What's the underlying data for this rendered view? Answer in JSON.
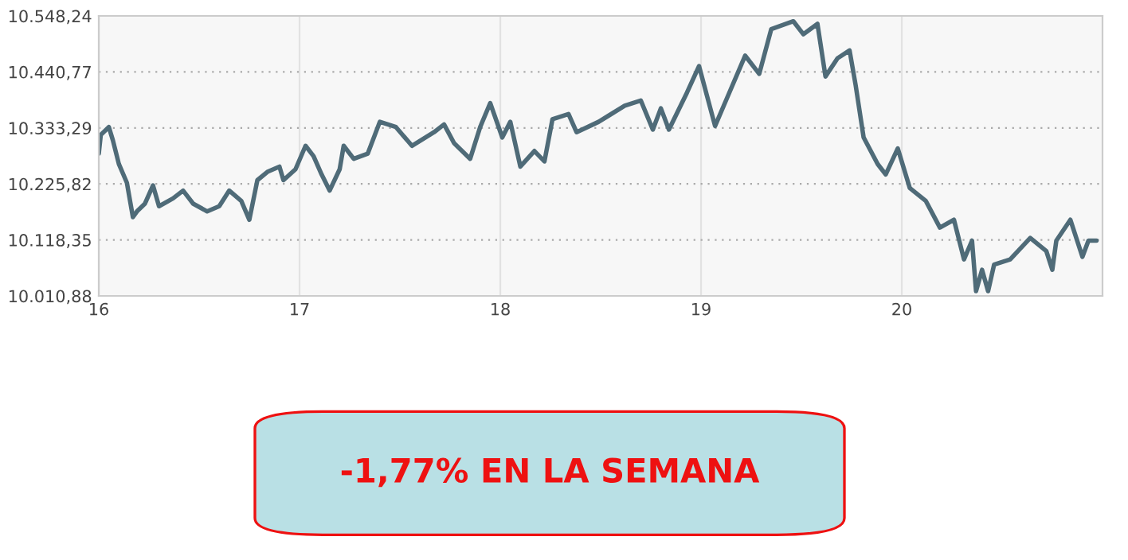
{
  "chart_data": {
    "type": "line",
    "x": [
      16.0,
      16.01,
      16.05,
      16.07,
      16.1,
      16.14,
      16.17,
      16.19,
      16.23,
      16.27,
      16.3,
      16.37,
      16.42,
      16.47,
      16.54,
      16.6,
      16.65,
      16.71,
      16.75,
      16.79,
      16.84,
      16.9,
      16.92,
      16.98,
      17.03,
      17.07,
      17.11,
      17.15,
      17.2,
      17.22,
      17.27,
      17.34,
      17.4,
      17.48,
      17.56,
      17.67,
      17.72,
      17.77,
      17.85,
      17.9,
      17.95,
      18.01,
      18.05,
      18.1,
      18.17,
      18.22,
      18.26,
      18.34,
      18.38,
      18.49,
      18.62,
      18.7,
      18.76,
      18.8,
      18.84,
      18.93,
      18.99,
      19.07,
      19.13,
      19.22,
      19.29,
      19.35,
      19.46,
      19.51,
      19.58,
      19.62,
      19.68,
      19.74,
      19.77,
      19.81,
      19.88,
      19.92,
      19.98,
      20.04,
      20.12,
      20.19,
      20.26,
      20.31,
      20.35,
      20.37,
      20.4,
      20.43,
      20.46,
      20.54,
      20.64,
      20.72,
      20.75,
      20.77,
      20.84,
      20.9,
      20.93,
      20.97
    ],
    "series": [
      {
        "color": "#4f6b78",
        "values": [
          10284,
          10320,
          10335,
          10310,
          10264,
          10228,
          10162,
          10173,
          10188,
          10223,
          10183,
          10198,
          10213,
          10188,
          10173,
          10183,
          10213,
          10193,
          10157,
          10233,
          10249,
          10259,
          10233,
          10254,
          10299,
          10279,
          10244,
          10213,
          10254,
          10299,
          10274,
          10284,
          10345,
          10335,
          10299,
          10325,
          10340,
          10304,
          10274,
          10335,
          10381,
          10315,
          10345,
          10259,
          10289,
          10269,
          10350,
          10360,
          10325,
          10345,
          10376,
          10386,
          10330,
          10371,
          10330,
          10401,
          10452,
          10337,
          10391,
          10472,
          10437,
          10523,
          10538,
          10513,
          10533,
          10432,
          10467,
          10482,
          10416,
          10315,
          10264,
          10244,
          10294,
          10218,
          10193,
          10142,
          10157,
          10081,
          10117,
          10020,
          10061,
          10020,
          10071,
          10081,
          10122,
          10097,
          10061,
          10117,
          10157,
          10086,
          10117,
          10117
        ]
      }
    ],
    "xlim": [
      16,
      21
    ],
    "xticks": [
      16,
      17,
      18,
      19,
      20
    ],
    "ylim": [
      10010.88,
      10548.24
    ],
    "yticks": [
      {
        "value": 10010.88,
        "label": "10.010,88"
      },
      {
        "value": 10118.35,
        "label": "10.118,35"
      },
      {
        "value": 10225.82,
        "label": "10.225,82"
      },
      {
        "value": 10333.29,
        "label": "10.333,29"
      },
      {
        "value": 10440.77,
        "label": "10.440,77"
      },
      {
        "value": 10548.24,
        "label": "10.548,24"
      }
    ],
    "grid": true,
    "line_style": "solid",
    "annotations": [
      "-1,77% EN LA SEMANA"
    ]
  }
}
